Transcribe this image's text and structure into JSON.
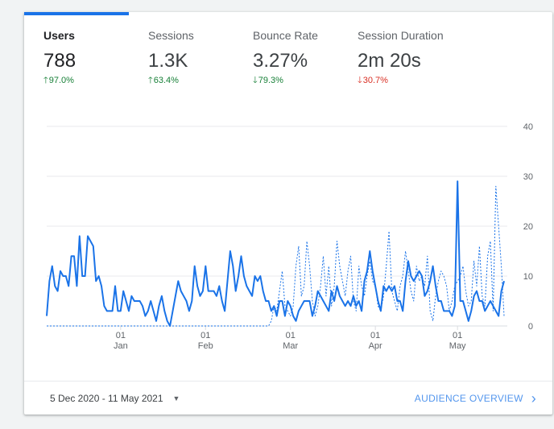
{
  "metrics": [
    {
      "label": "Users",
      "value": "788",
      "delta": "97.0%",
      "direction": "up",
      "tone": "good"
    },
    {
      "label": "Sessions",
      "value": "1.3K",
      "delta": "63.4%",
      "direction": "up",
      "tone": "good"
    },
    {
      "label": "Bounce Rate",
      "value": "3.27%",
      "delta": "79.3%",
      "direction": "down",
      "tone": "good"
    },
    {
      "label": "Session Duration",
      "value": "2m 20s",
      "delta": "30.7%",
      "direction": "down",
      "tone": "bad"
    }
  ],
  "footer": {
    "date_range": "5 Dec 2020 - 11 May 2021",
    "overview_link": "AUDIENCE OVERVIEW"
  },
  "colors": {
    "accent": "#1a73e8",
    "positive": "#188038",
    "negative": "#d93025"
  },
  "chart_data": {
    "type": "line",
    "y_ticks": [
      0,
      10,
      20,
      30,
      40
    ],
    "ylim": [
      0,
      40
    ],
    "x_tick_labels": [
      {
        "day": "01",
        "month": "Jan"
      },
      {
        "day": "01",
        "month": "Feb"
      },
      {
        "day": "01",
        "month": "Mar"
      },
      {
        "day": "01",
        "month": "Apr"
      },
      {
        "day": "01",
        "month": "May"
      }
    ],
    "x_tick_index": [
      27,
      58,
      89,
      120,
      150
    ],
    "grid": true,
    "series": [
      {
        "style": "solid",
        "values": [
          2,
          9,
          12,
          8,
          7,
          11,
          10,
          10,
          8,
          14,
          14,
          8,
          18,
          10,
          10,
          18,
          17,
          16,
          9,
          10,
          8,
          4,
          3,
          3,
          3,
          8,
          3,
          3,
          7,
          5,
          3,
          6,
          5,
          5,
          5,
          4,
          2,
          3,
          5,
          3,
          1,
          4,
          6,
          3,
          1,
          0,
          3,
          6,
          9,
          7,
          6,
          5,
          3,
          5,
          12,
          8,
          6,
          7,
          12,
          7,
          7,
          7,
          6,
          8,
          5,
          3,
          9,
          15,
          12,
          7,
          10,
          14,
          10,
          8,
          7,
          6,
          10,
          9,
          10,
          7,
          5,
          5,
          3,
          4,
          2,
          5,
          5,
          2,
          5,
          4,
          2,
          1,
          3,
          4,
          5,
          5,
          5,
          2,
          4,
          7,
          6,
          5,
          4,
          3,
          7,
          5,
          8,
          6,
          5,
          4,
          5,
          4,
          6,
          4,
          5,
          3,
          9,
          11,
          15,
          11,
          8,
          5,
          3,
          8,
          7,
          8,
          7,
          8,
          5,
          5,
          3,
          9,
          13,
          10,
          9,
          10,
          11,
          10,
          6,
          7,
          9,
          12,
          8,
          5,
          5,
          3,
          3,
          3,
          2,
          4,
          29,
          5,
          5,
          3,
          1,
          3,
          6,
          7,
          5,
          5,
          3,
          4,
          5,
          4,
          3,
          2,
          7,
          9
        ]
      },
      {
        "style": "dotted",
        "values": [
          0,
          0,
          0,
          0,
          0,
          0,
          0,
          0,
          0,
          0,
          0,
          0,
          0,
          0,
          0,
          0,
          0,
          0,
          0,
          0,
          0,
          0,
          0,
          0,
          0,
          0,
          0,
          0,
          0,
          0,
          0,
          0,
          0,
          0,
          0,
          0,
          0,
          0,
          0,
          0,
          0,
          0,
          0,
          0,
          0,
          0,
          0,
          0,
          0,
          0,
          0,
          0,
          0,
          0,
          0,
          0,
          0,
          0,
          0,
          0,
          0,
          0,
          0,
          0,
          0,
          0,
          0,
          0,
          0,
          0,
          0,
          0,
          0,
          0,
          0,
          0,
          0,
          0,
          0,
          0,
          0,
          0,
          1,
          4,
          3,
          7,
          11,
          4,
          3,
          2,
          4,
          12,
          16,
          6,
          8,
          17,
          12,
          5,
          2,
          4,
          8,
          14,
          6,
          12,
          4,
          8,
          17,
          12,
          9,
          6,
          11,
          14,
          5,
          3,
          12,
          8,
          6,
          10,
          13,
          9,
          8,
          4,
          3,
          6,
          12,
          19,
          7,
          5,
          3,
          8,
          10,
          15,
          11,
          7,
          5,
          12,
          9,
          10,
          8,
          14,
          3,
          1,
          6,
          9,
          11,
          10,
          8,
          3,
          5,
          8,
          9,
          10,
          12,
          7,
          4,
          5,
          13,
          8,
          16,
          6,
          4,
          14,
          17,
          3,
          28,
          20,
          12,
          2
        ]
      }
    ]
  }
}
